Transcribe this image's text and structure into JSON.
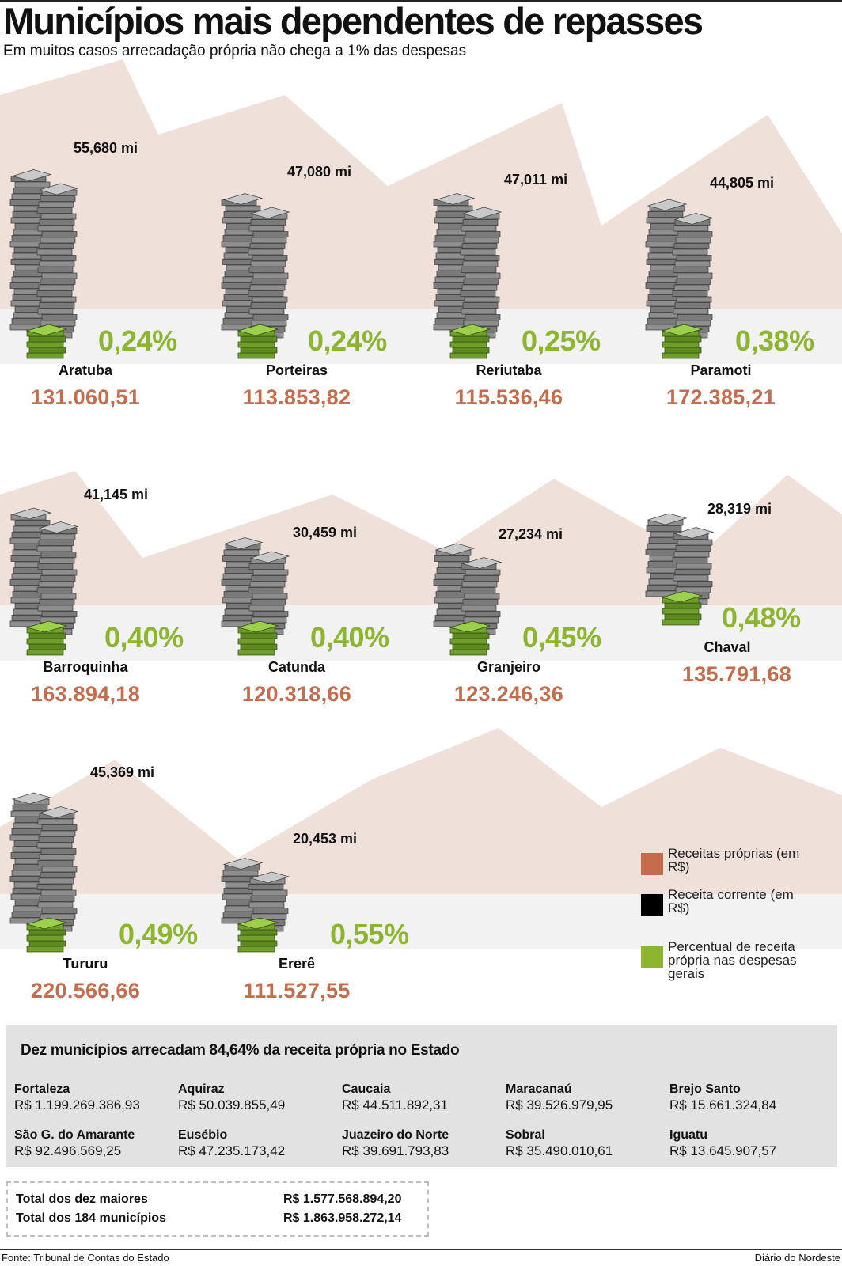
{
  "header": {
    "title": "Municípios mais dependentes de repasses",
    "subtitle": "Em muitos casos arrecadação própria não chega a 1% das despesas"
  },
  "colors": {
    "mountain": "#efe0da",
    "band": "#f2f2f2",
    "revenue": "#c46c4c",
    "percent": "#8db530",
    "bills_gray": "#8e8e8e",
    "bills_green": "#6f9e2a"
  },
  "chart_data": {
    "type": "pictogram",
    "series": [
      {
        "name": "Receitas próprias (em R$)",
        "values": [
          131060.51,
          113853.82,
          115536.46,
          172385.21,
          163894.18,
          120318.66,
          123246.36,
          135791.68,
          220566.66,
          111527.55
        ]
      },
      {
        "name": "Receita corrente (em R$)",
        "values": [
          55680000,
          47080000,
          47011000,
          44805000,
          41145000,
          30459000,
          27234000,
          28319000,
          45369000,
          20453000
        ]
      },
      {
        "name": "Percentual de receita própria nas despesas gerais",
        "values": [
          0.24,
          0.24,
          0.25,
          0.38,
          0.4,
          0.4,
          0.45,
          0.48,
          0.49,
          0.55
        ]
      }
    ],
    "municipalities": [
      {
        "name": "Aratuba",
        "current": "55,680 mi",
        "current_value": 55.68,
        "percent": "0,24%",
        "revenue": "131.060,51"
      },
      {
        "name": "Porteiras",
        "current": "47,080 mi",
        "current_value": 47.08,
        "percent": "0,24%",
        "revenue": "113.853,82"
      },
      {
        "name": "Reriutaba",
        "current": "47,011 mi",
        "current_value": 47.011,
        "percent": "0,25%",
        "revenue": "115.536,46"
      },
      {
        "name": "Paramoti",
        "current": "44,805 mi",
        "current_value": 44.805,
        "percent": "0,38%",
        "revenue": "172.385,21"
      },
      {
        "name": "Barroquinha",
        "current": "41,145 mi",
        "current_value": 41.145,
        "percent": "0,40%",
        "revenue": "163.894,18"
      },
      {
        "name": "Catunda",
        "current": "30,459 mi",
        "current_value": 30.459,
        "percent": "0,40%",
        "revenue": "120.318,66"
      },
      {
        "name": "Granjeiro",
        "current": "27,234 mi",
        "current_value": 27.234,
        "percent": "0,45%",
        "revenue": "123.246,36"
      },
      {
        "name": "Chaval",
        "current": "28,319 mi",
        "current_value": 28.319,
        "percent": "0,48%",
        "revenue": "135.791,68"
      },
      {
        "name": "Tururu",
        "current": "45,369 mi",
        "current_value": 45.369,
        "percent": "0,49%",
        "revenue": "220.566,66"
      },
      {
        "name": "Ererê",
        "current": "20,453 mi",
        "current_value": 20.453,
        "percent": "0,55%",
        "revenue": "111.527,55"
      }
    ]
  },
  "legend": [
    {
      "label": "Receitas próprias (em R$)",
      "color": "#c46c4c"
    },
    {
      "label": "Receita corrente (em R$)",
      "color": "#000000"
    },
    {
      "label": "Percentual de receita própria nas despesas gerais",
      "color": "#8db530"
    }
  ],
  "top_ten": {
    "title": "Dez municípios arrecadam 84,64% da receita própria no Estado",
    "items": [
      {
        "name": "Fortaleza",
        "value": "R$ 1.199.269.386,93"
      },
      {
        "name": "Aquiraz",
        "value": "R$ 50.039.855,49"
      },
      {
        "name": "Caucaia",
        "value": "R$ 44.511.892,31"
      },
      {
        "name": "Maracanaú",
        "value": "R$ 39.526.979,95"
      },
      {
        "name": "Brejo Santo",
        "value": "R$ 15.661.324,84"
      },
      {
        "name": "São G. do Amarante",
        "value": "R$ 92.496.569,25"
      },
      {
        "name": "Eusébio",
        "value": "R$ 47.235.173,42"
      },
      {
        "name": "Juazeiro do Norte",
        "value": "R$ 39.691.793,83"
      },
      {
        "name": "Sobral",
        "value": "R$ 35.490.010,61"
      },
      {
        "name": "Iguatu",
        "value": "R$ 13.645.907,57"
      }
    ]
  },
  "totals": [
    {
      "label": "Total dos dez maiores",
      "value": "R$ 1.577.568.894,20"
    },
    {
      "label": "Total dos 184 municípios",
      "value": "R$ 1.863.958.272,14"
    }
  ],
  "footer": {
    "source": "Fonte: Tribunal de Contas do Estado",
    "credit": "Diário do Nordeste"
  }
}
